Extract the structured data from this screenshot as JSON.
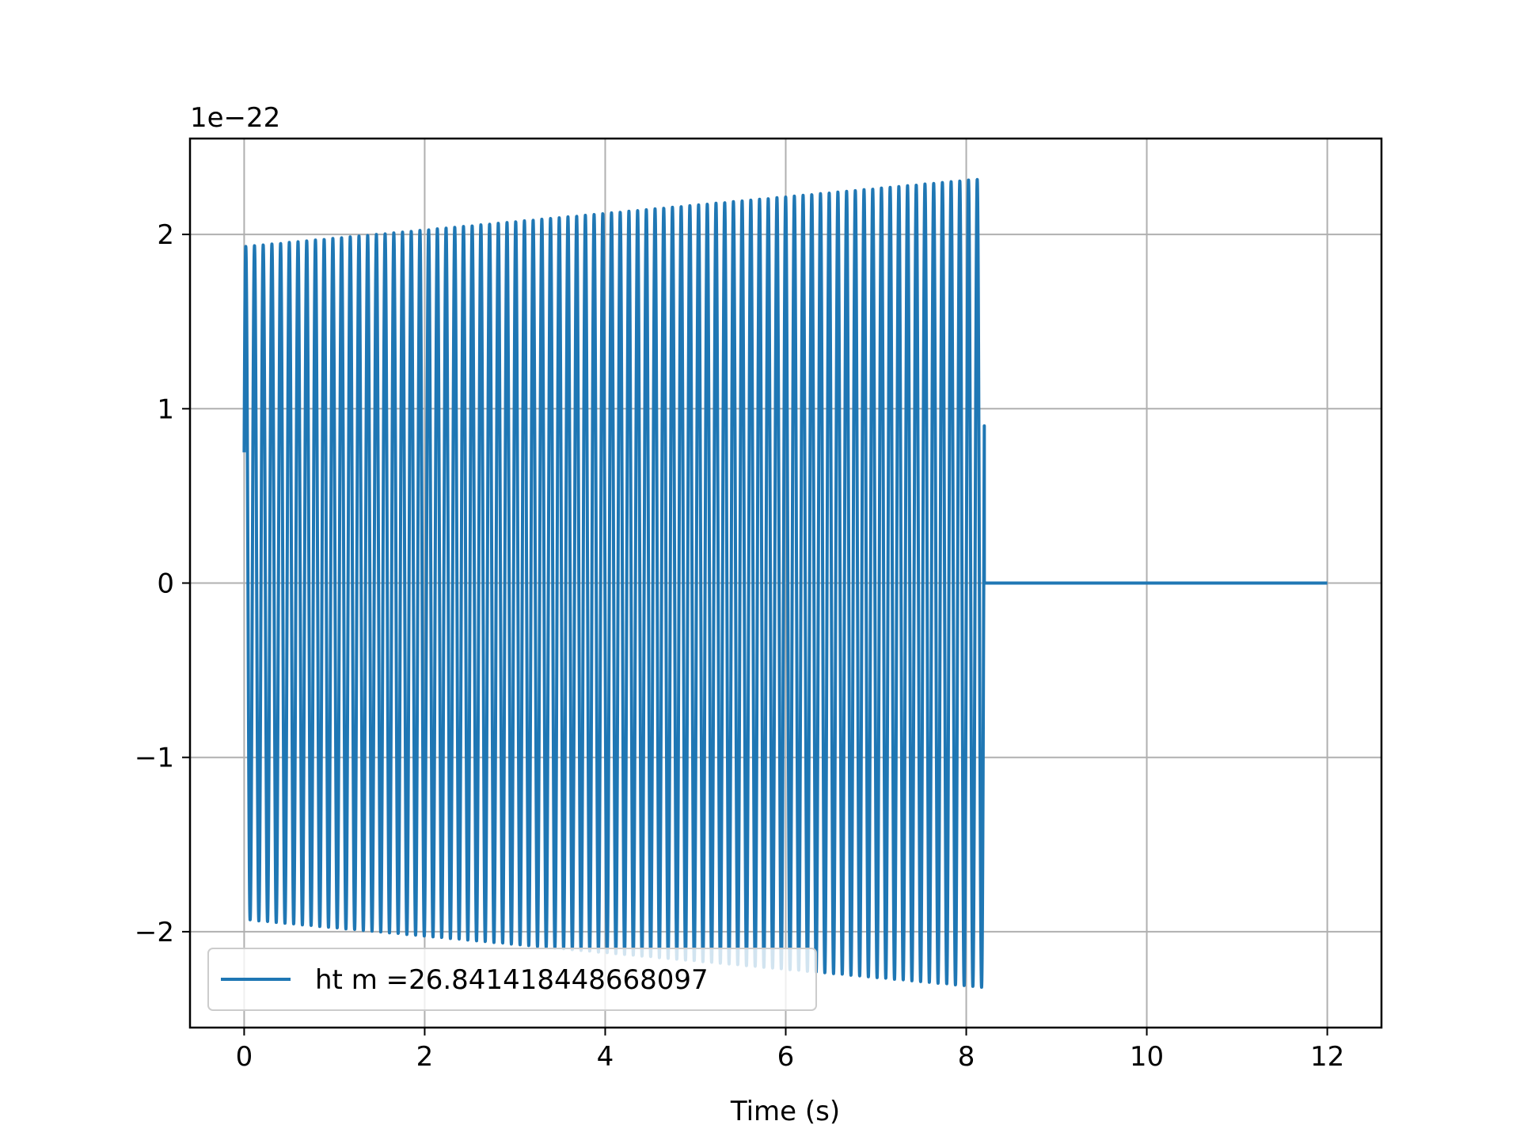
{
  "chart_data": {
    "type": "line",
    "title": "",
    "xlabel": "Time (s)",
    "ylabel": "",
    "y_offset_label": "1e−22",
    "xlim": [
      -0.6,
      12.6
    ],
    "ylim": [
      -2.55,
      2.55
    ],
    "x_ticks": [
      0,
      2,
      4,
      6,
      8,
      10,
      12
    ],
    "x_tick_labels": [
      "0",
      "2",
      "4",
      "6",
      "8",
      "10",
      "12"
    ],
    "y_ticks": [
      -2,
      -1,
      0,
      1,
      2
    ],
    "y_tick_labels": [
      "−2",
      "−1",
      "0",
      "1",
      "2"
    ],
    "grid": true,
    "legend_position": "lower-left",
    "series": [
      {
        "name": "ht m =26.841418448668097",
        "color": "#1f77b4",
        "signal": {
          "t_start": 0,
          "t_merge": 8.2,
          "t_end": 12,
          "initial_value": 0.75,
          "start_amplitude": 1.93,
          "end_amplitude": 2.32,
          "cycles": 85
        }
      }
    ]
  }
}
